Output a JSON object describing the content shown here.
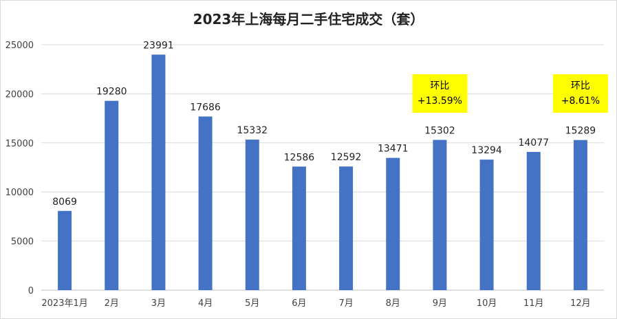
{
  "chart_data": {
    "type": "bar",
    "title": "2023年上海每月二手住宅成交（套）",
    "categories": [
      "2023年1月",
      "2月",
      "3月",
      "4月",
      "5月",
      "6月",
      "7月",
      "8月",
      "9月",
      "10月",
      "11月",
      "12月"
    ],
    "series": [
      {
        "values": [
          8069,
          19280,
          23991,
          17686,
          15332,
          12586,
          12592,
          13471,
          15302,
          13294,
          14077,
          15289
        ]
      }
    ],
    "data_labels": [
      "8069",
      "19280",
      "23991",
      "17686",
      "15332",
      "12586",
      "12592",
      "13471",
      "15302",
      "13294",
      "14077",
      "15289"
    ],
    "ylim": [
      0,
      25000
    ],
    "yticks": [
      0,
      5000,
      10000,
      15000,
      20000,
      25000
    ],
    "ytick_labels": [
      "0",
      "5000",
      "10000",
      "15000",
      "20000",
      "25000"
    ],
    "xlabel": "",
    "ylabel": "",
    "grid": true,
    "legend": "none",
    "annotations": [
      {
        "category_index": 8,
        "lines": [
          "环比",
          "+13.59%"
        ]
      },
      {
        "category_index": 11,
        "lines": [
          "环比",
          "+8.61%"
        ]
      }
    ],
    "colors": {
      "bar": "#4472c4",
      "grid": "#d9d9d9",
      "axis": "#bfbfbf",
      "callout_bg": "#ffff00"
    }
  }
}
